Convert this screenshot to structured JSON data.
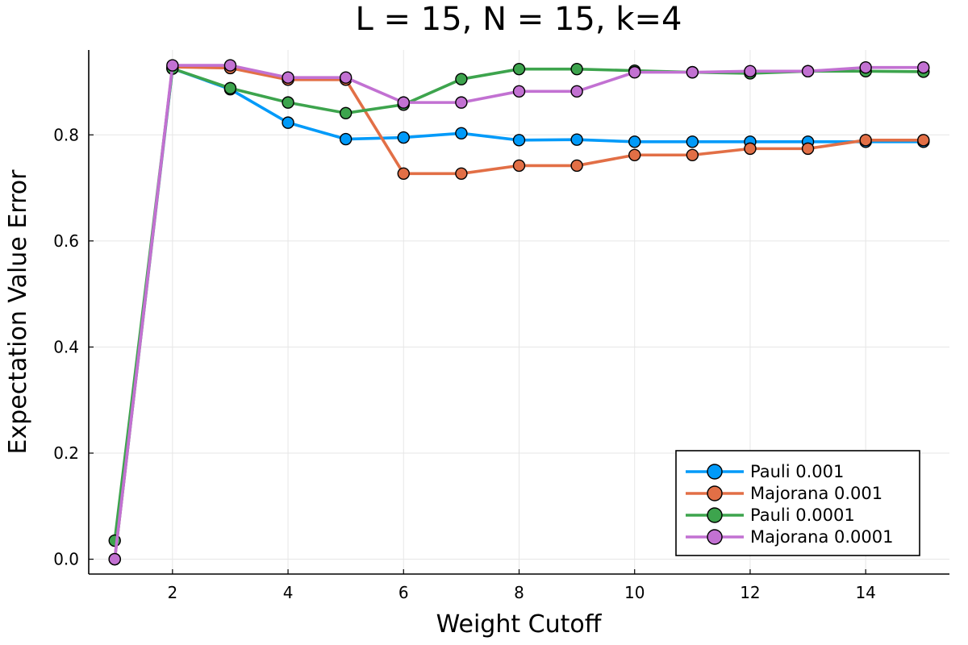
{
  "chart_data": {
    "type": "line",
    "title": "L = 15, N = 15, k=4",
    "xlabel": "Weight Cutoff",
    "ylabel": "Expectation Value Error",
    "xlim": [
      0.55,
      15.45
    ],
    "ylim": [
      -0.028,
      0.96
    ],
    "xticks": [
      2,
      4,
      6,
      8,
      10,
      12,
      14
    ],
    "xtick_labels": [
      "2",
      "4",
      "6",
      "8",
      "10",
      "12",
      "14"
    ],
    "yticks": [
      0.0,
      0.2,
      0.4,
      0.6,
      0.8
    ],
    "ytick_labels": [
      "0.0",
      "0.2",
      "0.4",
      "0.6",
      "0.8"
    ],
    "grid": true,
    "legend_position": "bottom-right",
    "x": [
      1,
      2,
      3,
      4,
      5,
      6,
      7,
      8,
      9,
      10,
      11,
      12,
      13,
      14,
      15
    ],
    "series": [
      {
        "name": "Pauli 0.001",
        "color": "#009af9",
        "values": [
          0.0,
          0.925,
          0.886,
          0.823,
          0.792,
          0.795,
          0.803,
          0.79,
          0.791,
          0.787,
          0.787,
          0.787,
          0.787,
          0.787,
          0.787
        ]
      },
      {
        "name": "Majorana 0.001",
        "color": "#e26f46",
        "values": [
          0.0,
          0.928,
          0.926,
          0.904,
          0.904,
          0.727,
          0.727,
          0.742,
          0.742,
          0.762,
          0.762,
          0.774,
          0.774,
          0.79,
          0.79
        ]
      },
      {
        "name": "Pauli 0.0001",
        "color": "#3da44d",
        "values": [
          0.035,
          0.925,
          0.888,
          0.861,
          0.841,
          0.857,
          0.905,
          0.924,
          0.924,
          0.921,
          0.918,
          0.916,
          0.92,
          0.92,
          0.919
        ]
      },
      {
        "name": "Majorana 0.0001",
        "color": "#c271d2",
        "values": [
          0.0,
          0.931,
          0.931,
          0.908,
          0.908,
          0.861,
          0.861,
          0.882,
          0.882,
          0.918,
          0.918,
          0.92,
          0.92,
          0.927,
          0.927
        ]
      }
    ]
  }
}
